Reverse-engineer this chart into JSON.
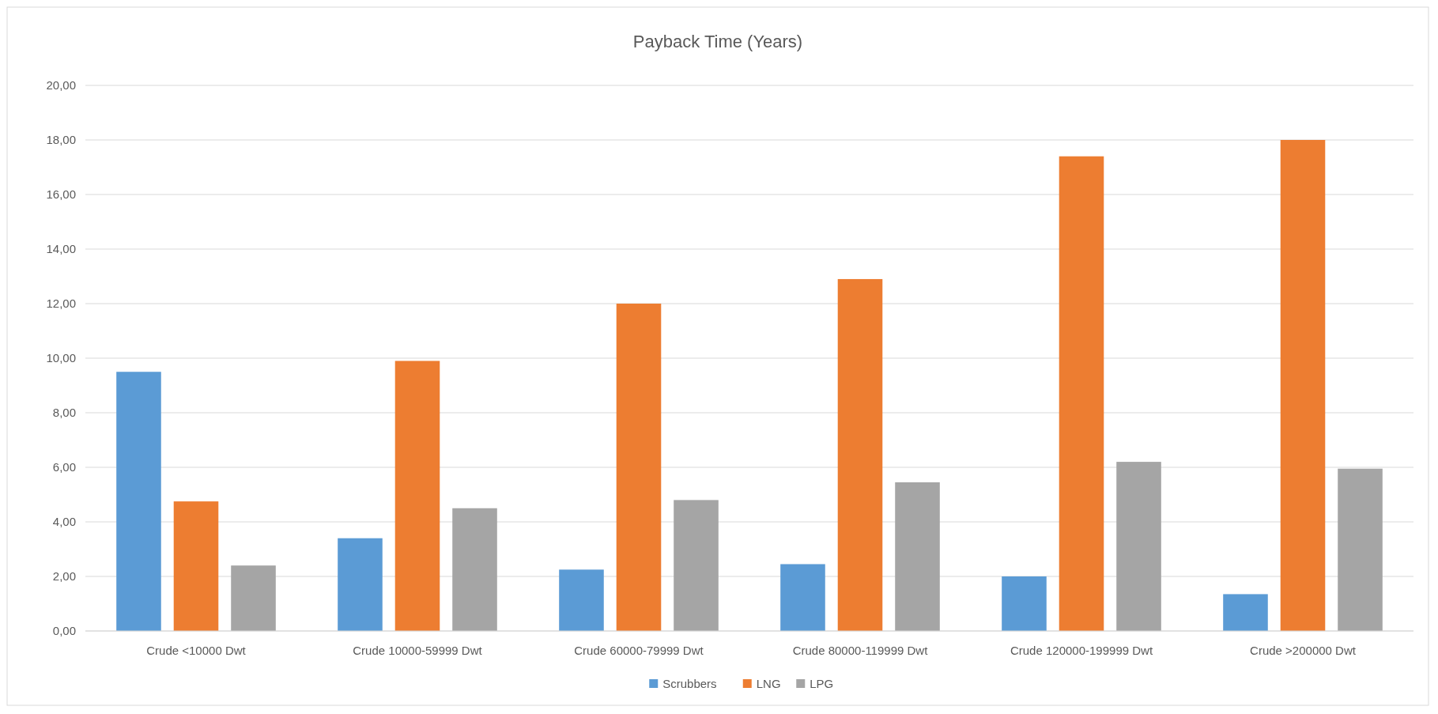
{
  "chart_data": {
    "type": "bar",
    "title": "Payback Time (Years)",
    "categories": [
      "Crude <10000 Dwt",
      "Crude 10000-59999 Dwt",
      "Crude 60000-79999 Dwt",
      "Crude 80000-119999 Dwt",
      "Crude 120000-199999 Dwt",
      "Crude >200000 Dwt"
    ],
    "series": [
      {
        "name": "Scrubbers",
        "color": "#5b9bd5",
        "values": [
          9.5,
          3.4,
          2.25,
          2.45,
          2.0,
          1.35
        ]
      },
      {
        "name": "LNG",
        "color": "#ed7d31",
        "values": [
          4.75,
          9.9,
          12.0,
          12.9,
          17.4,
          18.0
        ]
      },
      {
        "name": "LPG",
        "color": "#a5a5a5",
        "values": [
          2.4,
          4.5,
          4.8,
          5.45,
          6.2,
          5.95
        ]
      }
    ],
    "ylim": [
      0,
      20
    ],
    "yticks": [
      {
        "value": 0,
        "label": "0,00"
      },
      {
        "value": 2,
        "label": "2,00"
      },
      {
        "value": 4,
        "label": "4,00"
      },
      {
        "value": 6,
        "label": "6,00"
      },
      {
        "value": 8,
        "label": "8,00"
      },
      {
        "value": 10,
        "label": "10,00"
      },
      {
        "value": 12,
        "label": "12,00"
      },
      {
        "value": 14,
        "label": "14,00"
      },
      {
        "value": 16,
        "label": "16,00"
      },
      {
        "value": 18,
        "label": "18,00"
      },
      {
        "value": 20,
        "label": "20,00"
      }
    ],
    "grid": "y",
    "legend": "bottom"
  }
}
